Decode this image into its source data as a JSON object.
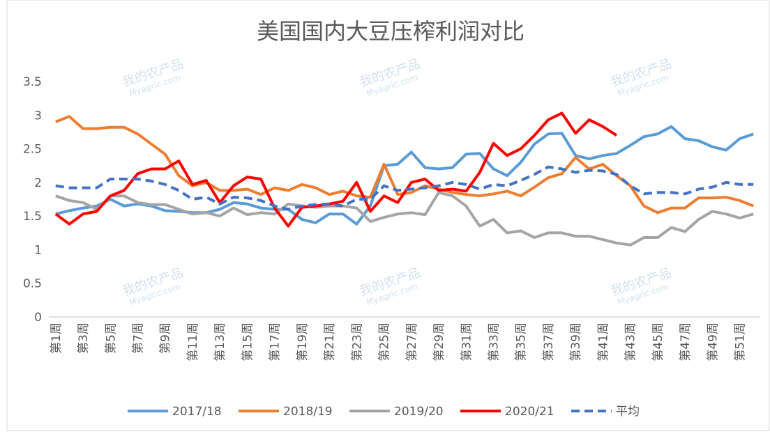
{
  "chart_data": {
    "type": "line",
    "title": "美国国内大豆压榨利润对比",
    "categories": [
      "第1周",
      null,
      "第3周",
      null,
      "第5周",
      null,
      "第7周",
      null,
      "第9周",
      null,
      "第11周",
      null,
      "第13周",
      null,
      "第15周",
      null,
      "第17周",
      null,
      "第19周",
      null,
      "第21周",
      null,
      "第23周",
      null,
      "第25周",
      null,
      "第27周",
      null,
      "第29周",
      null,
      "第31周",
      null,
      "第33周",
      null,
      "第35周",
      null,
      "第37周",
      null,
      "第39周",
      null,
      "第41周",
      null,
      "第43周",
      null,
      "第45周",
      null,
      "第47周",
      null,
      "第49周",
      null,
      "第51周",
      null
    ],
    "series": [
      {
        "name": "2017/18",
        "color": "#5b9bd5",
        "dash": false,
        "values": [
          1.53,
          1.58,
          1.62,
          1.65,
          1.75,
          1.65,
          1.68,
          1.65,
          1.58,
          1.57,
          1.55,
          1.55,
          1.6,
          1.7,
          1.68,
          1.62,
          1.6,
          1.6,
          1.45,
          1.4,
          1.53,
          1.53,
          1.38,
          1.65,
          2.25,
          2.27,
          2.45,
          2.22,
          2.2,
          2.22,
          2.42,
          2.43,
          2.2,
          2.1,
          2.3,
          2.57,
          2.72,
          2.73,
          2.4,
          2.35,
          2.4,
          2.43,
          2.55,
          2.68,
          2.72,
          2.83,
          2.65,
          2.62,
          2.53,
          2.48,
          2.65,
          2.72
        ]
      },
      {
        "name": "2018/19",
        "color": "#ed7d31",
        "dash": false,
        "values": [
          2.9,
          2.98,
          2.8,
          2.8,
          2.82,
          2.82,
          2.72,
          2.57,
          2.42,
          2.1,
          1.95,
          2.0,
          1.88,
          1.88,
          1.9,
          1.82,
          1.92,
          1.88,
          1.97,
          1.92,
          1.82,
          1.87,
          1.8,
          1.78,
          2.27,
          1.82,
          1.85,
          1.95,
          1.9,
          1.85,
          1.82,
          1.8,
          1.83,
          1.87,
          1.8,
          1.93,
          2.07,
          2.13,
          2.37,
          2.2,
          2.27,
          2.1,
          1.95,
          1.65,
          1.55,
          1.62,
          1.62,
          1.77,
          1.77,
          1.78,
          1.73,
          1.65
        ]
      },
      {
        "name": "2019/20",
        "color": "#a5a5a5",
        "dash": false,
        "values": [
          1.8,
          1.73,
          1.7,
          1.6,
          1.8,
          1.8,
          1.7,
          1.67,
          1.67,
          1.6,
          1.53,
          1.55,
          1.5,
          1.62,
          1.52,
          1.55,
          1.53,
          1.68,
          1.65,
          1.63,
          1.65,
          1.65,
          1.62,
          1.42,
          1.48,
          1.53,
          1.55,
          1.52,
          1.85,
          1.8,
          1.65,
          1.35,
          1.45,
          1.25,
          1.28,
          1.18,
          1.25,
          1.25,
          1.2,
          1.2,
          1.15,
          1.1,
          1.07,
          1.18,
          1.18,
          1.33,
          1.27,
          1.45,
          1.57,
          1.53,
          1.47,
          1.53
        ]
      },
      {
        "name": "2020/21",
        "color": "#ff0000",
        "dash": false,
        "values": [
          1.53,
          1.38,
          1.53,
          1.57,
          1.8,
          1.88,
          2.13,
          2.2,
          2.2,
          2.32,
          1.97,
          2.03,
          1.7,
          1.95,
          2.08,
          2.05,
          1.62,
          1.35,
          1.63,
          1.65,
          1.68,
          1.72,
          2.0,
          1.57,
          1.8,
          1.7,
          2.0,
          2.05,
          1.88,
          1.9,
          1.87,
          2.15,
          2.58,
          2.4,
          2.5,
          2.7,
          2.93,
          3.03,
          2.73,
          2.93,
          2.83,
          2.7,
          null,
          null,
          null,
          null,
          null,
          null,
          null,
          null,
          null,
          null
        ]
      },
      {
        "name": "平均",
        "color": "#4472c4",
        "dash": true,
        "values": [
          1.95,
          1.92,
          1.92,
          1.92,
          2.05,
          2.05,
          2.05,
          2.02,
          1.97,
          1.88,
          1.75,
          1.78,
          1.68,
          1.78,
          1.77,
          1.73,
          1.65,
          1.6,
          1.65,
          1.67,
          1.68,
          1.65,
          1.75,
          1.75,
          1.95,
          1.88,
          1.9,
          1.92,
          1.95,
          2.0,
          1.97,
          1.9,
          1.97,
          1.95,
          2.03,
          2.12,
          2.23,
          2.2,
          2.15,
          2.18,
          2.17,
          2.12,
          1.95,
          1.83,
          1.85,
          1.85,
          1.83,
          1.9,
          1.93,
          2.0,
          1.97,
          1.97
        ]
      }
    ],
    "ylim": [
      0,
      3.5
    ],
    "yticks": [
      0,
      0.5,
      1,
      1.5,
      2,
      2.5,
      3,
      3.5
    ],
    "grid": false,
    "legend": "bottom",
    "watermark": [
      "我的农产品",
      "Myagric.com"
    ]
  }
}
